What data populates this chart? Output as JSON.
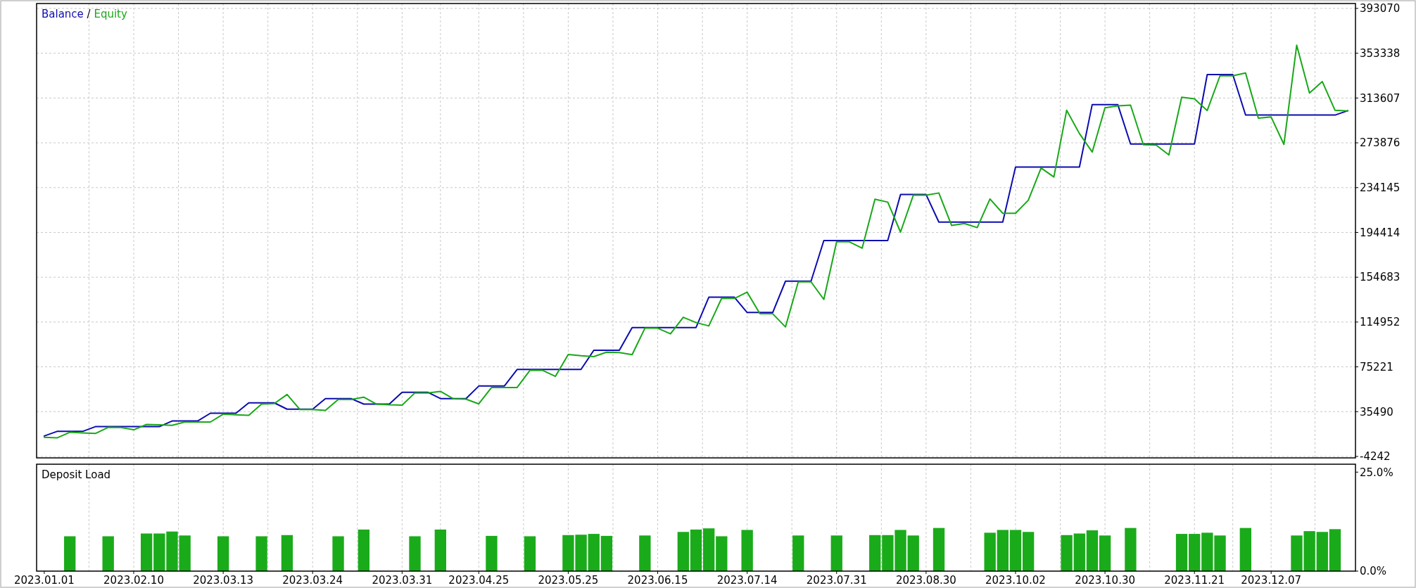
{
  "chart_data": [
    {
      "type": "line",
      "legend": "top left",
      "annotations": [
        "/"
      ],
      "grid": true,
      "tick_labels": "y",
      "categories": [
        "2023.01.01",
        null,
        null,
        null,
        null,
        null,
        null,
        "2023.02.10",
        null,
        null,
        null,
        null,
        null,
        null,
        "2023.03.13",
        null,
        null,
        null,
        null,
        null,
        null,
        "2023.03.24",
        null,
        null,
        null,
        null,
        null,
        null,
        "2023.03.31",
        null,
        null,
        null,
        null,
        null,
        "2023.04.25",
        null,
        null,
        null,
        null,
        null,
        null,
        "2023.05.25",
        null,
        null,
        null,
        null,
        null,
        null,
        "2023.06.15",
        null,
        null,
        null,
        null,
        null,
        null,
        "2023.07.14",
        null,
        null,
        null,
        null,
        null,
        null,
        "2023.07.31",
        null,
        null,
        null,
        null,
        null,
        null,
        "2023.08.30",
        null,
        null,
        null,
        null,
        null,
        null,
        "2023.10.02",
        null,
        null,
        null,
        null,
        null,
        null,
        "2023.10.30",
        null,
        null,
        null,
        null,
        null,
        null,
        "2023.11.21",
        null,
        null,
        null,
        null,
        null,
        "2023.12.07",
        null,
        null,
        null,
        null,
        null,
        null
      ],
      "ylim": [
        -5500,
        397400
      ],
      "yticks": [
        -4242,
        35490,
        75221,
        114952,
        154683,
        194414,
        234145,
        273876,
        313607,
        353338,
        393070
      ],
      "series": [
        {
          "name": "Balance",
          "color": "#0c0cb0",
          "values": [
            13900,
            18000,
            18000,
            18000,
            22200,
            22200,
            22200,
            22200,
            22200,
            22200,
            27200,
            27200,
            27200,
            34100,
            34100,
            34100,
            43300,
            43300,
            43300,
            37700,
            37700,
            37700,
            47100,
            47100,
            47100,
            42200,
            42200,
            42200,
            52700,
            52700,
            52700,
            47100,
            47100,
            47100,
            58200,
            58200,
            58200,
            72900,
            72900,
            72900,
            72900,
            72900,
            72900,
            89900,
            89900,
            89900,
            110100,
            110100,
            110100,
            110100,
            110100,
            110100,
            137000,
            137000,
            137000,
            123400,
            123400,
            123400,
            151200,
            151200,
            151200,
            187200,
            187200,
            187200,
            187200,
            187200,
            187200,
            228000,
            228000,
            228000,
            203600,
            203600,
            203600,
            203600,
            203600,
            203600,
            252400,
            252400,
            252400,
            252400,
            252400,
            252400,
            307800,
            307800,
            307800,
            272800,
            272800,
            272800,
            272800,
            272800,
            272800,
            334400,
            334400,
            334400,
            298500,
            298500,
            298500,
            298500,
            298500,
            298500,
            298500,
            298500,
            302400
          ]
        },
        {
          "name": "Equity",
          "color": "#18a818",
          "values": [
            12800,
            12200,
            17200,
            16600,
            16100,
            21600,
            21400,
            19400,
            24100,
            23800,
            23300,
            26300,
            26300,
            26300,
            33300,
            32700,
            32200,
            42200,
            42700,
            50700,
            37400,
            37400,
            36600,
            46300,
            46300,
            48300,
            42200,
            41600,
            41300,
            52100,
            52100,
            53500,
            46900,
            46600,
            42400,
            56900,
            56900,
            56900,
            72100,
            72100,
            66800,
            86200,
            85100,
            84300,
            88200,
            87900,
            86000,
            109500,
            109500,
            104500,
            119200,
            114500,
            111500,
            135900,
            135900,
            141400,
            122300,
            122300,
            110600,
            150600,
            150600,
            135000,
            186100,
            186100,
            180500,
            223800,
            221300,
            194700,
            227400,
            227400,
            229400,
            200600,
            202300,
            198700,
            224100,
            211400,
            211400,
            223000,
            251500,
            243600,
            302700,
            282100,
            265700,
            305000,
            306700,
            307300,
            272200,
            271900,
            263100,
            314300,
            312900,
            302500,
            333300,
            333300,
            335800,
            295700,
            296800,
            272500,
            360400,
            318000,
            328200,
            302700,
            302200
          ]
        }
      ]
    },
    {
      "type": "bar",
      "title": "Deposit Load",
      "color": "#1aab1a",
      "grid": "x",
      "categories": [
        "2023.01.01",
        null,
        null,
        null,
        null,
        null,
        null,
        "2023.02.10",
        null,
        null,
        null,
        null,
        null,
        null,
        "2023.03.13",
        null,
        null,
        null,
        null,
        null,
        null,
        "2023.03.24",
        null,
        null,
        null,
        null,
        null,
        null,
        "2023.03.31",
        null,
        null,
        null,
        null,
        null,
        "2023.04.25",
        null,
        null,
        null,
        null,
        null,
        null,
        "2023.05.25",
        null,
        null,
        null,
        null,
        null,
        null,
        "2023.06.15",
        null,
        null,
        null,
        null,
        null,
        null,
        "2023.07.14",
        null,
        null,
        null,
        null,
        null,
        null,
        "2023.07.31",
        null,
        null,
        null,
        null,
        null,
        null,
        "2023.08.30",
        null,
        null,
        null,
        null,
        null,
        null,
        "2023.10.02",
        null,
        null,
        null,
        null,
        null,
        null,
        "2023.10.30",
        null,
        null,
        null,
        null,
        null,
        null,
        "2023.11.21",
        null,
        null,
        null,
        null,
        null,
        "2023.12.07",
        null,
        null,
        null,
        null,
        null,
        null
      ],
      "values": [
        null,
        null,
        8.8,
        null,
        null,
        8.8,
        null,
        null,
        9.5,
        9.5,
        10.0,
        9.0,
        null,
        null,
        8.8,
        null,
        null,
        8.8,
        null,
        9.1,
        null,
        null,
        null,
        8.8,
        null,
        10.5,
        null,
        null,
        null,
        8.8,
        null,
        10.5,
        null,
        null,
        null,
        8.9,
        null,
        null,
        8.8,
        null,
        null,
        9.1,
        9.2,
        9.4,
        8.9,
        null,
        null,
        9.0,
        null,
        null,
        9.9,
        10.5,
        10.8,
        8.8,
        null,
        10.4,
        null,
        null,
        null,
        9.0,
        null,
        null,
        9.0,
        null,
        null,
        9.1,
        9.1,
        10.4,
        9.0,
        null,
        10.9,
        null,
        null,
        null,
        9.7,
        10.4,
        10.4,
        9.9,
        null,
        null,
        9.1,
        9.5,
        10.3,
        9.0,
        null,
        10.9,
        null,
        null,
        null,
        9.4,
        9.4,
        9.7,
        9.0,
        null,
        10.9,
        null,
        null,
        null,
        9.0,
        10.1,
        9.9,
        10.6,
        null
      ],
      "ylim": [
        0,
        27
      ],
      "yticks": [
        {
          "value": 25,
          "label": "25.0%"
        },
        {
          "value": 0,
          "label": "0.0%"
        }
      ]
    }
  ]
}
